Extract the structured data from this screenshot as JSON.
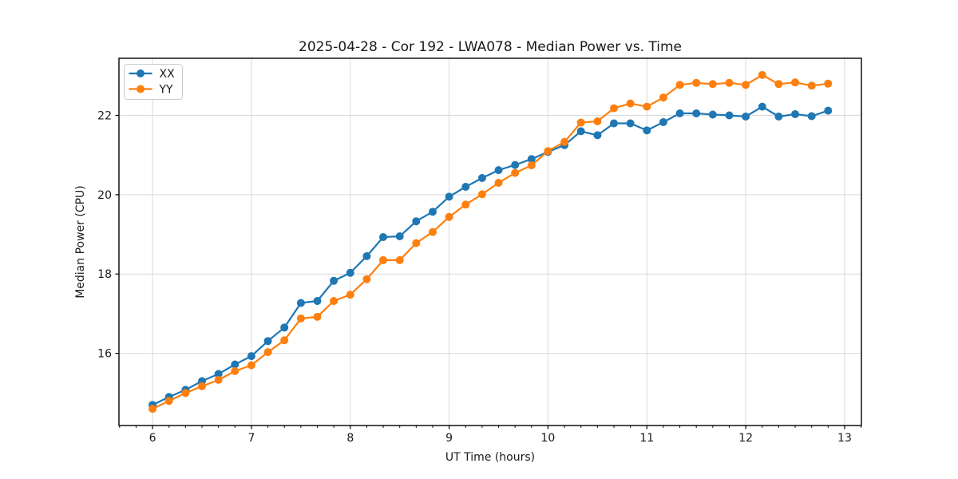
{
  "chart_data": {
    "type": "line",
    "title": "2025-04-28 - Cor 192 - LWA078 - Median Power vs. Time",
    "xlabel": "UT Time (hours)",
    "ylabel": "Median Power (CPU)",
    "xlim": [
      5.66,
      13.17
    ],
    "ylim": [
      14.18,
      23.44
    ],
    "xticks": [
      6,
      7,
      8,
      9,
      10,
      11,
      12,
      13
    ],
    "yticks": [
      16,
      18,
      20,
      22
    ],
    "x_minor_divisions_per_hour": 6,
    "grid": true,
    "legend_position": "upper left",
    "background_color": "#ffffff",
    "grid_color": "#d9d9d9",
    "axis_color": "#000000",
    "x": [
      6.0,
      6.1667,
      6.3333,
      6.5,
      6.6667,
      6.8333,
      7.0,
      7.1667,
      7.3333,
      7.5,
      7.6667,
      7.8333,
      8.0,
      8.1667,
      8.3333,
      8.5,
      8.6667,
      8.8333,
      9.0,
      9.1667,
      9.3333,
      9.5,
      9.6667,
      9.8333,
      10.0,
      10.1667,
      10.3333,
      10.5,
      10.6667,
      10.8333,
      11.0,
      11.1667,
      11.3333,
      11.5,
      11.6667,
      11.8333,
      12.0,
      12.1667,
      12.3333,
      12.5,
      12.6667,
      12.8333
    ],
    "series": [
      {
        "name": "XX",
        "color": "#1f77b4",
        "values": [
          14.7,
          14.9,
          15.08,
          15.3,
          15.48,
          15.72,
          15.93,
          16.31,
          16.65,
          17.27,
          17.32,
          17.83,
          18.03,
          18.45,
          18.93,
          18.95,
          19.33,
          19.57,
          19.95,
          20.2,
          20.42,
          20.62,
          20.75,
          20.9,
          21.08,
          21.25,
          21.6,
          21.5,
          21.8,
          21.8,
          21.62,
          21.83,
          22.05,
          22.05,
          22.02,
          22.0,
          21.97,
          22.22,
          21.97,
          22.03,
          21.98,
          22.12
        ]
      },
      {
        "name": "YY",
        "color": "#ff7f0e",
        "values": [
          14.6,
          14.8,
          15.0,
          15.17,
          15.33,
          15.55,
          15.7,
          16.03,
          16.33,
          16.88,
          16.92,
          17.32,
          17.48,
          17.87,
          18.35,
          18.35,
          18.78,
          19.06,
          19.44,
          19.75,
          20.01,
          20.3,
          20.55,
          20.74,
          21.1,
          21.33,
          21.82,
          21.85,
          22.18,
          22.3,
          22.22,
          22.45,
          22.77,
          22.82,
          22.79,
          22.82,
          22.77,
          23.02,
          22.79,
          22.83,
          22.75,
          22.8
        ]
      }
    ]
  }
}
